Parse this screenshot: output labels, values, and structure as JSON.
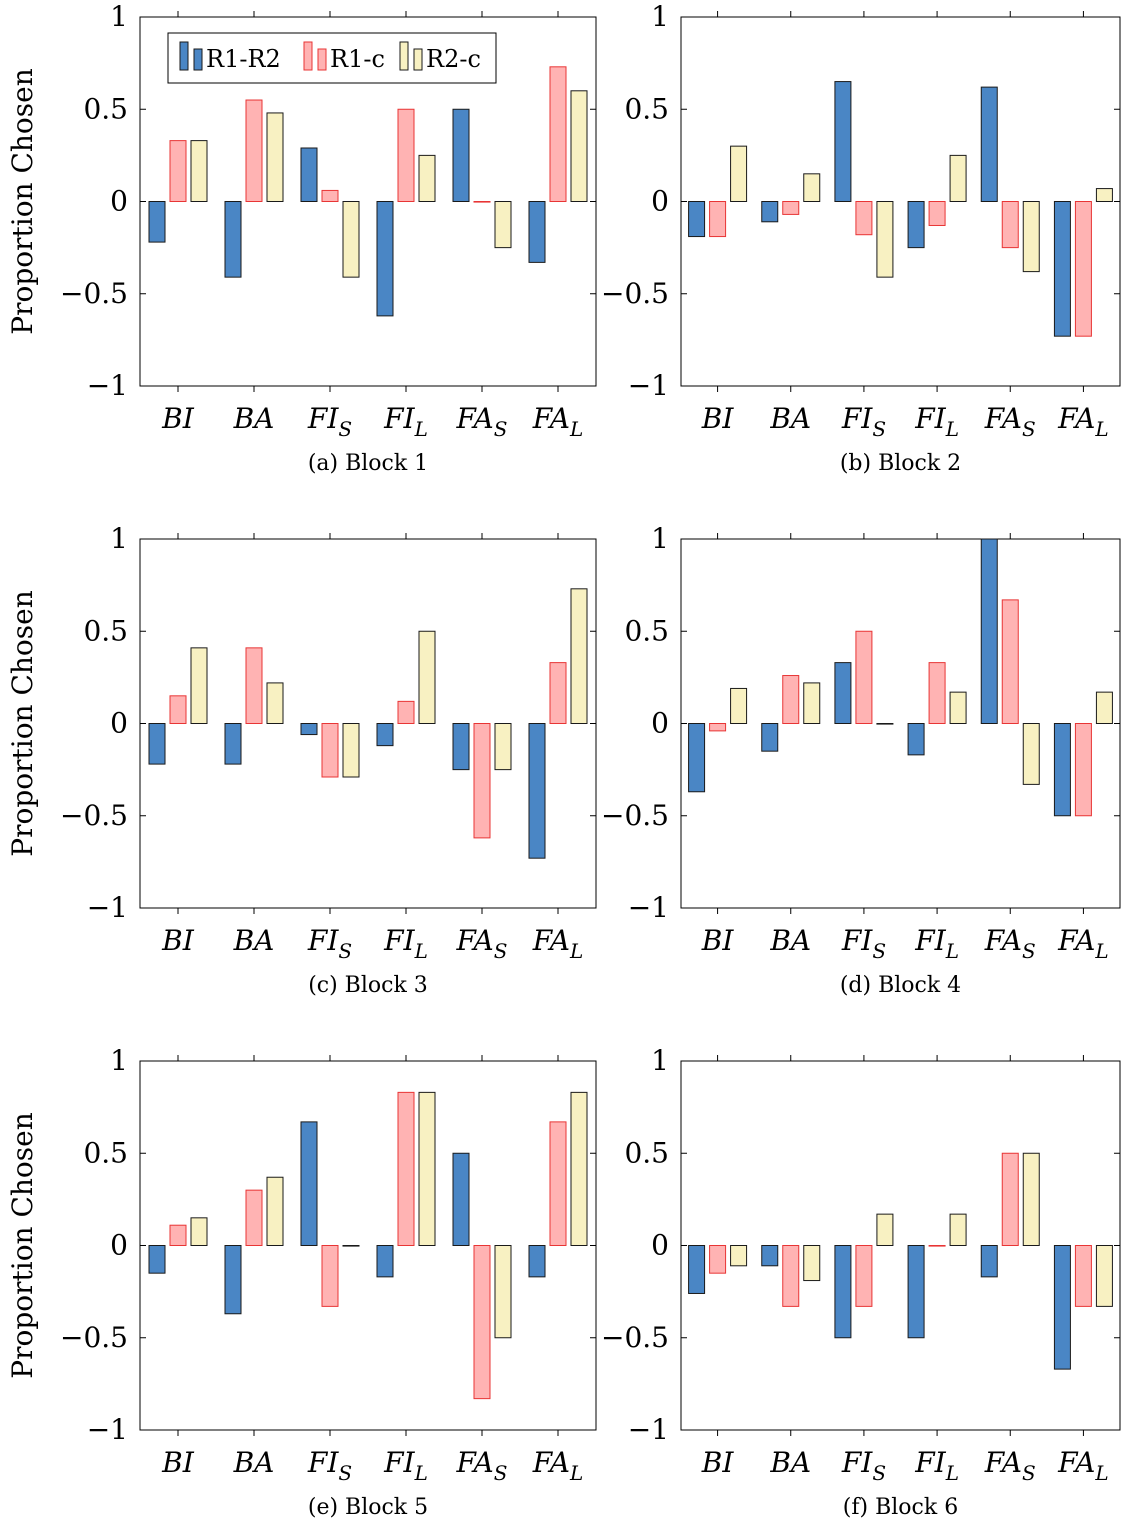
{
  "colors": {
    "R1-R2": {
      "fill": "#4a86c5",
      "stroke": "#1a1a1a"
    },
    "R1-c": {
      "fill": "#ffb3b3",
      "stroke": "#e83535"
    },
    "R2-c": {
      "fill": "#f8f1c2",
      "stroke": "#1a1a1a"
    }
  },
  "chart_data": [
    {
      "type": "bar",
      "caption": "(a) Block 1",
      "ylabel": "Proportion Chosen",
      "ylim": [
        -1,
        1
      ],
      "yticks": [
        -1,
        -0.5,
        0,
        0.5,
        1
      ],
      "ytick_labels": [
        "−1",
        "−0.5",
        "0",
        "0.5",
        "1"
      ],
      "categories": [
        {
          "base": "BI",
          "sub": ""
        },
        {
          "base": "BA",
          "sub": ""
        },
        {
          "base": "FI",
          "sub": "S"
        },
        {
          "base": "FI",
          "sub": "L"
        },
        {
          "base": "FA",
          "sub": "S"
        },
        {
          "base": "FA",
          "sub": "L"
        }
      ],
      "legend": {
        "position": "top-left",
        "entries": [
          "R1-R2",
          "R1-c",
          "R2-c"
        ]
      },
      "series": [
        {
          "name": "R1-R2",
          "values": [
            -0.22,
            -0.41,
            0.29,
            -0.62,
            0.5,
            -0.33
          ]
        },
        {
          "name": "R1-c",
          "values": [
            0.33,
            0.55,
            0.06,
            0.5,
            0.0,
            0.73
          ]
        },
        {
          "name": "R2-c",
          "values": [
            0.33,
            0.48,
            -0.41,
            0.25,
            -0.25,
            0.6
          ]
        }
      ]
    },
    {
      "type": "bar",
      "caption": "(b) Block 2",
      "ylabel": "",
      "ylim": [
        -1,
        1
      ],
      "yticks": [
        -1,
        -0.5,
        0,
        0.5,
        1
      ],
      "ytick_labels": [
        "−1",
        "−0.5",
        "0",
        "0.5",
        "1"
      ],
      "categories": [
        {
          "base": "BI",
          "sub": ""
        },
        {
          "base": "BA",
          "sub": ""
        },
        {
          "base": "FI",
          "sub": "S"
        },
        {
          "base": "FI",
          "sub": "L"
        },
        {
          "base": "FA",
          "sub": "S"
        },
        {
          "base": "FA",
          "sub": "L"
        }
      ],
      "series": [
        {
          "name": "R1-R2",
          "values": [
            -0.19,
            -0.11,
            0.65,
            -0.25,
            0.62,
            -0.73
          ]
        },
        {
          "name": "R1-c",
          "values": [
            -0.19,
            -0.07,
            -0.18,
            -0.13,
            -0.25,
            -0.73
          ]
        },
        {
          "name": "R2-c",
          "values": [
            0.3,
            0.15,
            -0.41,
            0.25,
            -0.38,
            0.07
          ]
        }
      ]
    },
    {
      "type": "bar",
      "caption": "(c) Block 3",
      "ylabel": "Proportion Chosen",
      "ylim": [
        -1,
        1
      ],
      "yticks": [
        -1,
        -0.5,
        0,
        0.5,
        1
      ],
      "ytick_labels": [
        "−1",
        "−0.5",
        "0",
        "0.5",
        "1"
      ],
      "categories": [
        {
          "base": "BI",
          "sub": ""
        },
        {
          "base": "BA",
          "sub": ""
        },
        {
          "base": "FI",
          "sub": "S"
        },
        {
          "base": "FI",
          "sub": "L"
        },
        {
          "base": "FA",
          "sub": "S"
        },
        {
          "base": "FA",
          "sub": "L"
        }
      ],
      "series": [
        {
          "name": "R1-R2",
          "values": [
            -0.22,
            -0.22,
            -0.06,
            -0.12,
            -0.25,
            -0.73
          ]
        },
        {
          "name": "R1-c",
          "values": [
            0.15,
            0.41,
            -0.29,
            0.12,
            -0.62,
            0.33
          ]
        },
        {
          "name": "R2-c",
          "values": [
            0.41,
            0.22,
            -0.29,
            0.5,
            -0.25,
            0.73
          ]
        }
      ]
    },
    {
      "type": "bar",
      "caption": "(d) Block 4",
      "ylabel": "",
      "ylim": [
        -1,
        1
      ],
      "yticks": [
        -1,
        -0.5,
        0,
        0.5,
        1
      ],
      "ytick_labels": [
        "−1",
        "−0.5",
        "0",
        "0.5",
        "1"
      ],
      "categories": [
        {
          "base": "BI",
          "sub": ""
        },
        {
          "base": "BA",
          "sub": ""
        },
        {
          "base": "FI",
          "sub": "S"
        },
        {
          "base": "FI",
          "sub": "L"
        },
        {
          "base": "FA",
          "sub": "S"
        },
        {
          "base": "FA",
          "sub": "L"
        }
      ],
      "series": [
        {
          "name": "R1-R2",
          "values": [
            -0.37,
            -0.15,
            0.33,
            -0.17,
            1.0,
            -0.5
          ]
        },
        {
          "name": "R1-c",
          "values": [
            -0.04,
            0.26,
            0.5,
            0.33,
            0.67,
            -0.5
          ]
        },
        {
          "name": "R2-c",
          "values": [
            0.19,
            0.22,
            0.0,
            0.17,
            -0.33,
            0.17
          ]
        }
      ]
    },
    {
      "type": "bar",
      "caption": "(e) Block 5",
      "ylabel": "Proportion Chosen",
      "ylim": [
        -1,
        1
      ],
      "yticks": [
        -1,
        -0.5,
        0,
        0.5,
        1
      ],
      "ytick_labels": [
        "−1",
        "−0.5",
        "0",
        "0.5",
        "1"
      ],
      "categories": [
        {
          "base": "BI",
          "sub": ""
        },
        {
          "base": "BA",
          "sub": ""
        },
        {
          "base": "FI",
          "sub": "S"
        },
        {
          "base": "FI",
          "sub": "L"
        },
        {
          "base": "FA",
          "sub": "S"
        },
        {
          "base": "FA",
          "sub": "L"
        }
      ],
      "series": [
        {
          "name": "R1-R2",
          "values": [
            -0.15,
            -0.37,
            0.67,
            -0.17,
            0.5,
            -0.17
          ]
        },
        {
          "name": "R1-c",
          "values": [
            0.11,
            0.3,
            -0.33,
            0.83,
            -0.83,
            0.67
          ]
        },
        {
          "name": "R2-c",
          "values": [
            0.15,
            0.37,
            0.0,
            0.83,
            -0.5,
            0.83
          ]
        }
      ]
    },
    {
      "type": "bar",
      "caption": "(f) Block 6",
      "ylabel": "",
      "ylim": [
        -1,
        1
      ],
      "yticks": [
        -1,
        -0.5,
        0,
        0.5,
        1
      ],
      "ytick_labels": [
        "−1",
        "−0.5",
        "0",
        "0.5",
        "1"
      ],
      "categories": [
        {
          "base": "BI",
          "sub": ""
        },
        {
          "base": "BA",
          "sub": ""
        },
        {
          "base": "FI",
          "sub": "S"
        },
        {
          "base": "FI",
          "sub": "L"
        },
        {
          "base": "FA",
          "sub": "S"
        },
        {
          "base": "FA",
          "sub": "L"
        }
      ],
      "series": [
        {
          "name": "R1-R2",
          "values": [
            -0.26,
            -0.11,
            -0.5,
            -0.5,
            -0.17,
            -0.67
          ]
        },
        {
          "name": "R1-c",
          "values": [
            -0.15,
            -0.33,
            -0.33,
            0.0,
            0.5,
            -0.33
          ]
        },
        {
          "name": "R2-c",
          "values": [
            -0.11,
            -0.19,
            0.17,
            0.17,
            0.5,
            -0.33
          ]
        }
      ]
    }
  ]
}
